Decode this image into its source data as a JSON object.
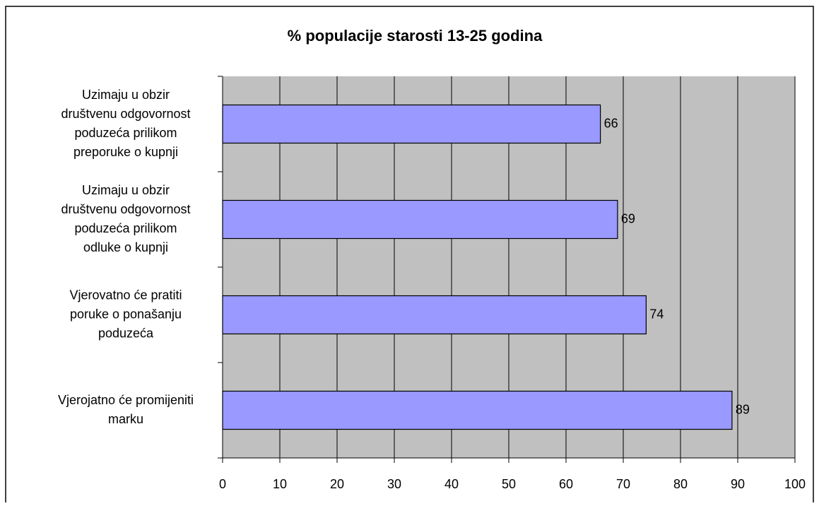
{
  "chart_data": {
    "type": "bar",
    "orientation": "horizontal",
    "title": "% populacije starosti 13-25 godina",
    "categories": [
      "Uzimaju u obzir\ndruštvenu odgovornost\npoduzeća prilikom\npreporuke o kupnji",
      "Uzimaju u obzir\ndruštvenu odgovornost\npoduzeća prilikom\nodluke o kupnji",
      "Vjerovatno će pratiti\nporuke o ponašanju\npoduzeća",
      "Vjerojatno će promijeniti\nmarku"
    ],
    "values": [
      66,
      69,
      74,
      89
    ],
    "color": "#9999ff",
    "xlim": [
      0,
      100
    ],
    "xticks": [
      0,
      10,
      20,
      30,
      40,
      50,
      60,
      70,
      80,
      90,
      100
    ],
    "grid": true
  }
}
